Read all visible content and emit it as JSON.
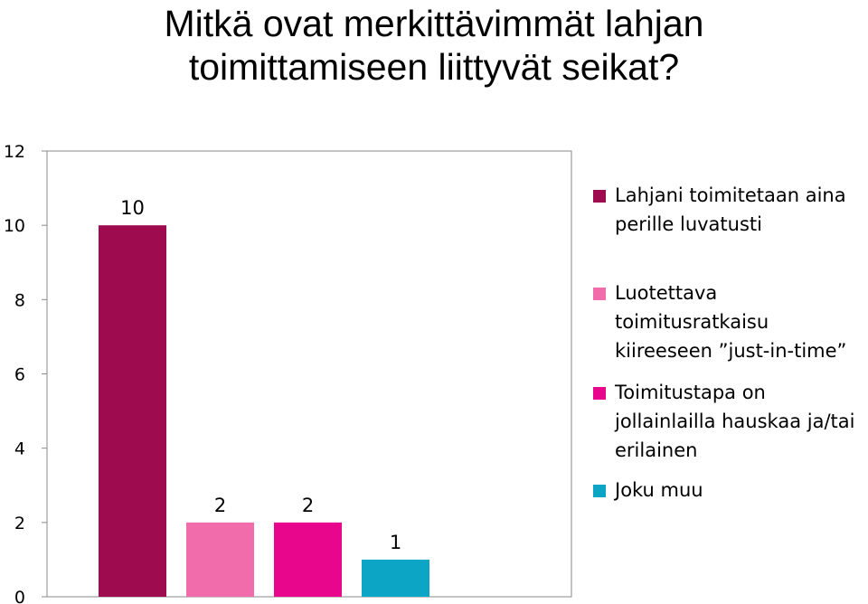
{
  "chart_data": {
    "type": "bar",
    "title_lines": [
      "Mitkä ovat merkittävimmät lahjan",
      "toimittamiseen liittyvät seikat?"
    ],
    "ylim": [
      0,
      12
    ],
    "yticks": [
      0,
      2,
      4,
      6,
      8,
      10,
      12
    ],
    "grid": false,
    "legend_position": "right",
    "series": [
      {
        "name": "Lahjani toimitetaan aina perille luvatusti",
        "values": [
          10
        ],
        "color": "#9E0B4E"
      },
      {
        "name": "Luotettava toimitusratkaisu kiireeseen ”just-in-time”",
        "values": [
          2
        ],
        "color": "#F06CAB"
      },
      {
        "name": "Toimitustapa on jollainlailla hauskaa ja/tai erilainen",
        "values": [
          2
        ],
        "color": "#E8068C"
      },
      {
        "name": "Joku muu",
        "values": [
          1
        ],
        "color": "#0DA5C5"
      }
    ]
  }
}
